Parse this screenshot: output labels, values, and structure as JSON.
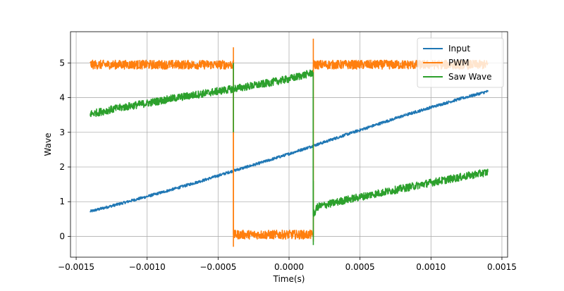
{
  "chart_data": {
    "type": "line",
    "xlabel": "Time(s)",
    "ylabel": "Wave",
    "xlim": [
      -0.00154,
      0.00154
    ],
    "ylim": [
      -0.6,
      5.9
    ],
    "x_ticks": [
      -0.0015,
      -0.001,
      -0.0005,
      0.0,
      0.0005,
      0.001,
      0.0015
    ],
    "x_tick_labels": [
      "−0.0015",
      "−0.0010",
      "−0.0005",
      "0.0000",
      "0.0005",
      "0.0010",
      "0.0015"
    ],
    "y_ticks": [
      0,
      1,
      2,
      3,
      4,
      5
    ],
    "y_tick_labels": [
      "0",
      "1",
      "2",
      "3",
      "4",
      "5"
    ],
    "grid": true,
    "legend_position": "top-right",
    "series": [
      {
        "name": "Input",
        "color": "#1f77b4",
        "x": [
          -0.0014,
          -0.0012,
          -0.001,
          -0.0008,
          -0.0006,
          -0.0004,
          -0.0002,
          0.0,
          0.0002,
          0.0004,
          0.0006,
          0.0008,
          0.001,
          0.0012,
          0.0014
        ],
        "y": [
          0.72,
          0.93,
          1.15,
          1.38,
          1.62,
          1.88,
          2.12,
          2.38,
          2.65,
          2.93,
          3.2,
          3.47,
          3.72,
          3.96,
          4.18
        ],
        "noise": 0.04
      },
      {
        "name": "PWM",
        "color": "#ff7f0e",
        "x": [
          -0.0014,
          -0.000392,
          -0.000392,
          0.000171,
          0.000171,
          0.0014
        ],
        "y": [
          4.95,
          4.95,
          0.05,
          0.05,
          4.95,
          4.95
        ],
        "noise": 0.13,
        "spikes": [
          {
            "x": -0.000392,
            "low": -0.3,
            "high": 5.45
          },
          {
            "x": 0.000171,
            "low": -0.15,
            "high": 5.7
          }
        ]
      },
      {
        "name": "Saw Wave",
        "color": "#2ca02c",
        "x": [
          -0.0014,
          -0.0012,
          -0.001,
          -0.0008,
          -0.0006,
          -0.0004,
          -0.0004,
          -0.0002,
          0.0,
          0.00017,
          0.00017,
          0.0002,
          0.0004,
          0.0006,
          0.0008,
          0.001,
          0.0012,
          0.0014
        ],
        "y": [
          3.53,
          3.7,
          3.84,
          3.99,
          4.12,
          4.25,
          4.25,
          4.38,
          4.54,
          4.72,
          0.6,
          0.85,
          1.05,
          1.22,
          1.38,
          1.55,
          1.7,
          1.85
        ],
        "noise": 0.11,
        "spikes": [
          {
            "x": -0.000392,
            "low": 3.0,
            "high": 5.0
          },
          {
            "x": 0.000171,
            "low": -0.25,
            "high": 1.6
          }
        ]
      }
    ]
  }
}
